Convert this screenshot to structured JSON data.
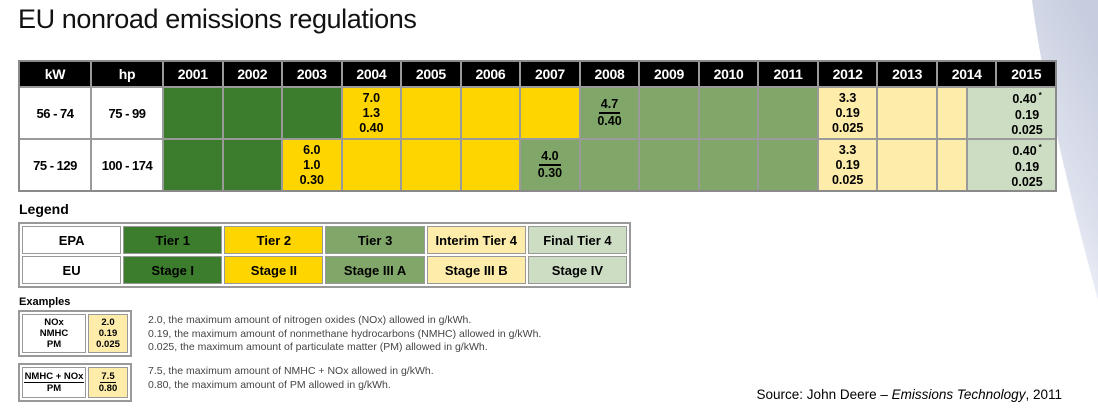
{
  "title": "EU nonroad emissions regulations",
  "colors": {
    "tier1": "#3c7d2d",
    "tier2": "#ffd500",
    "tier3": "#80a669",
    "tier4i": "#fdecaa",
    "tier4f": "#cdddc3",
    "grid": "#999999",
    "header_bg": "#000000",
    "header_text": "#ffffff",
    "swoosh": "#c7cdde"
  },
  "main_table": {
    "headers": {
      "kw": "kW",
      "hp": "hp",
      "years": [
        "2001",
        "2002",
        "2003",
        "2004",
        "2005",
        "2006",
        "2007",
        "2008",
        "2009",
        "2010",
        "2011",
        "2012",
        "2013",
        "2014",
        "2015"
      ]
    },
    "rows": [
      {
        "kw": "56 - 74",
        "hp": "75 - 99",
        "segments": [
          {
            "span": 2,
            "color": "tier1"
          },
          {
            "span": 2,
            "color": "tier1"
          },
          {
            "span": 2,
            "color": "tier1"
          },
          {
            "span": 2,
            "color": "tier2",
            "lines": [
              "7.0",
              "1.3",
              "0.40"
            ]
          },
          {
            "span": 2,
            "color": "tier2"
          },
          {
            "span": 2,
            "color": "tier2"
          },
          {
            "span": 2,
            "color": "tier2"
          },
          {
            "span": 2,
            "color": "tier3",
            "lines": [
              "4.7",
              "0.40"
            ],
            "fraction": true
          },
          {
            "span": 2,
            "color": "tier3"
          },
          {
            "span": 2,
            "color": "tier3"
          },
          {
            "span": 2,
            "color": "tier3"
          },
          {
            "span": 2,
            "color": "tier4i",
            "lines": [
              "3.3",
              "0.19",
              "0.025"
            ]
          },
          {
            "span": 2,
            "color": "tier4i"
          },
          {
            "span": 1,
            "color": "tier4i"
          },
          {
            "span": 3,
            "color": "tier4f",
            "lines": [
              "0.40",
              "0.19",
              "0.025"
            ],
            "star": true,
            "shift": true
          }
        ]
      },
      {
        "kw": "75 - 129",
        "hp": "100 - 174",
        "segments": [
          {
            "span": 2,
            "color": "tier1"
          },
          {
            "span": 2,
            "color": "tier1"
          },
          {
            "span": 2,
            "color": "tier2",
            "lines": [
              "6.0",
              "1.0",
              "0.30"
            ]
          },
          {
            "span": 2,
            "color": "tier2"
          },
          {
            "span": 2,
            "color": "tier2"
          },
          {
            "span": 2,
            "color": "tier2"
          },
          {
            "span": 2,
            "color": "tier3",
            "lines": [
              "4.0",
              "0.30"
            ],
            "fraction": true
          },
          {
            "span": 2,
            "color": "tier3"
          },
          {
            "span": 2,
            "color": "tier3"
          },
          {
            "span": 2,
            "color": "tier3"
          },
          {
            "span": 2,
            "color": "tier3"
          },
          {
            "span": 2,
            "color": "tier4i",
            "lines": [
              "3.3",
              "0.19",
              "0.025"
            ]
          },
          {
            "span": 2,
            "color": "tier4i"
          },
          {
            "span": 1,
            "color": "tier4i"
          },
          {
            "span": 3,
            "color": "tier4f",
            "lines": [
              "0.40",
              "0.19",
              "0.025"
            ],
            "star": true,
            "shift": true
          }
        ]
      }
    ]
  },
  "legend": {
    "label": "Legend",
    "rows": [
      {
        "label": "EPA",
        "cells": [
          {
            "text": "Tier 1",
            "color": "tier1"
          },
          {
            "text": "Tier 2",
            "color": "tier2"
          },
          {
            "text": "Tier 3",
            "color": "tier3"
          },
          {
            "text": "Interim Tier 4",
            "color": "tier4i"
          },
          {
            "text": "Final Tier 4",
            "color": "tier4f"
          }
        ]
      },
      {
        "label": "EU",
        "cells": [
          {
            "text": "Stage I",
            "color": "tier1"
          },
          {
            "text": "Stage II",
            "color": "tier2"
          },
          {
            "text": "Stage III A",
            "color": "tier3"
          },
          {
            "text": "Stage III B",
            "color": "tier4i"
          },
          {
            "text": "Stage IV",
            "color": "tier4f"
          }
        ]
      }
    ]
  },
  "examples": {
    "label": "Examples",
    "boxes": [
      {
        "left_lines": [
          {
            "t": "NOx"
          },
          {
            "t": "NMHC"
          },
          {
            "t": "PM"
          }
        ],
        "right_lines": [
          {
            "t": "2.0"
          },
          {
            "t": "0.19"
          },
          {
            "t": "0.025"
          }
        ],
        "right_color": "tier4i",
        "desc": [
          "2.0, the maximum amount of nitrogen oxides (NOx) allowed in g/kWh.",
          "0.19, the maximum amount of nonmethane hydrocarbons (NMHC) allowed in g/kWh.",
          "0.025, the maximum amount of particulate matter (PM) allowed in g/kWh."
        ]
      },
      {
        "left_lines": [
          {
            "t": "NMHC + NOx",
            "u": true
          },
          {
            "t": "PM"
          }
        ],
        "right_lines": [
          {
            "t": "7.5",
            "u": true
          },
          {
            "t": "0.80"
          }
        ],
        "right_color": "tier4i",
        "desc": [
          "7.5, the maximum amount of NMHC + NOx allowed in g/kWh.",
          "0.80, the maximum amount of PM allowed in g/kWh."
        ]
      }
    ]
  },
  "source": {
    "prefix": "Source: John Deere – ",
    "italic": "Emissions Technology",
    "suffix": ", 2011"
  },
  "chart_data": {
    "type": "table",
    "title": "EU nonroad emissions regulations",
    "unit": "g/kWh",
    "year_columns": [
      2001,
      2002,
      2003,
      2004,
      2005,
      2006,
      2007,
      2008,
      2009,
      2010,
      2011,
      2012,
      2013,
      2014,
      2015
    ],
    "power_rows": [
      {
        "kW": "56 - 74",
        "hp": "75 - 99",
        "timeline": [
          {
            "epa_tier": "Tier 1",
            "eu_stage": "Stage I",
            "start_year": 2001,
            "end_year": 2003
          },
          {
            "epa_tier": "Tier 2",
            "eu_stage": "Stage II",
            "start_year": 2004,
            "end_year": 2007,
            "limits_g_per_kWh": {
              "NOx": "7.0",
              "NMHC": "1.3",
              "PM": "0.40"
            }
          },
          {
            "epa_tier": "Tier 3",
            "eu_stage": "Stage III A",
            "start_year": 2008,
            "end_year": 2011,
            "limits_g_per_kWh": {
              "NMHC+NOx": "4.7",
              "PM": "0.40"
            }
          },
          {
            "epa_tier": "Interim Tier 4",
            "eu_stage": "Stage III B",
            "start_year": 2012,
            "end_year": "mid 2014",
            "limits_g_per_kWh": {
              "NOx": "3.3",
              "NMHC": "0.19",
              "PM": "0.025"
            }
          },
          {
            "epa_tier": "Final Tier 4",
            "eu_stage": "Stage IV",
            "start_year": "mid 2014",
            "end_year": 2015,
            "limits_g_per_kWh": {
              "NOx": "0.40*",
              "NMHC": "0.19",
              "PM": "0.025"
            }
          }
        ]
      },
      {
        "kW": "75 - 129",
        "hp": "100 - 174",
        "timeline": [
          {
            "epa_tier": "Tier 1",
            "eu_stage": "Stage I",
            "start_year": 2001,
            "end_year": 2002
          },
          {
            "epa_tier": "Tier 2",
            "eu_stage": "Stage II",
            "start_year": 2003,
            "end_year": 2006,
            "limits_g_per_kWh": {
              "NOx": "6.0",
              "NMHC": "1.0",
              "PM": "0.30"
            }
          },
          {
            "epa_tier": "Tier 3",
            "eu_stage": "Stage III A",
            "start_year": 2007,
            "end_year": 2011,
            "limits_g_per_kWh": {
              "NMHC+NOx": "4.0",
              "PM": "0.30"
            }
          },
          {
            "epa_tier": "Interim Tier 4",
            "eu_stage": "Stage III B",
            "start_year": 2012,
            "end_year": "mid 2014",
            "limits_g_per_kWh": {
              "NOx": "3.3",
              "NMHC": "0.19",
              "PM": "0.025"
            }
          },
          {
            "epa_tier": "Final Tier 4",
            "eu_stage": "Stage IV",
            "start_year": "mid 2014",
            "end_year": 2015,
            "limits_g_per_kWh": {
              "NOx": "0.40*",
              "NMHC": "0.19",
              "PM": "0.025"
            }
          }
        ]
      }
    ],
    "legend_pairs": [
      {
        "EPA": "Tier 1",
        "EU": "Stage I"
      },
      {
        "EPA": "Tier 2",
        "EU": "Stage II"
      },
      {
        "EPA": "Tier 3",
        "EU": "Stage III A"
      },
      {
        "EPA": "Interim Tier 4",
        "EU": "Stage III B"
      },
      {
        "EPA": "Final Tier 4",
        "EU": "Stage IV"
      }
    ]
  }
}
